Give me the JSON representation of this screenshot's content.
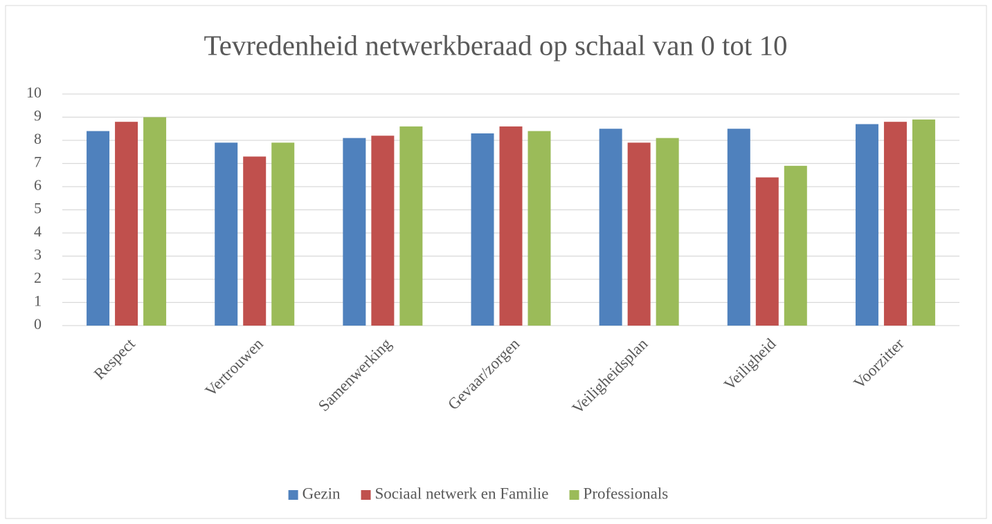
{
  "chart_data": {
    "type": "bar",
    "title": "Tevredenheid netwerkberaad op schaal van 0 tot 10",
    "categories": [
      "Respect",
      "Vertrouwen",
      "Samenwerking",
      "Gevaar/zorgen",
      "Veiligheidsplan",
      "Veiligheid",
      "Voorzitter"
    ],
    "series": [
      {
        "name": "Gezin",
        "color": "#4f81bd",
        "values": [
          8.4,
          7.9,
          8.1,
          8.3,
          8.5,
          8.5,
          8.7
        ]
      },
      {
        "name": "Sociaal netwerk en Familie",
        "color": "#c0504d",
        "values": [
          8.8,
          7.3,
          8.2,
          8.6,
          7.9,
          6.4,
          8.8
        ]
      },
      {
        "name": "Professionals",
        "color": "#9bbb59",
        "values": [
          9.0,
          7.9,
          8.6,
          8.4,
          8.1,
          6.9,
          8.9
        ]
      }
    ],
    "ylim": [
      0,
      10
    ],
    "yticks": [
      0,
      1,
      2,
      3,
      4,
      5,
      6,
      7,
      8,
      9,
      10
    ],
    "grid": true,
    "legend": "bottom"
  }
}
